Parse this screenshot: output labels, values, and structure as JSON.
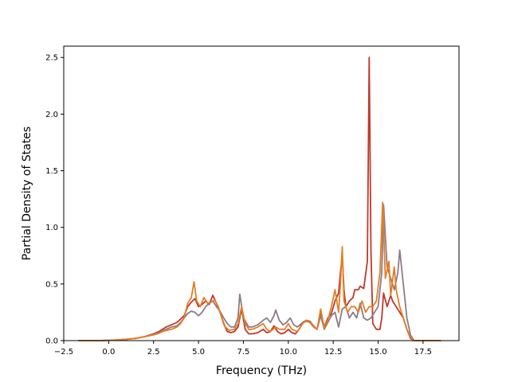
{
  "chart_data": {
    "type": "line",
    "title": "",
    "xlabel": "Frequency (THz)",
    "ylabel": "Partial Density of States",
    "xlim": [
      -2.5,
      19.5
    ],
    "ylim": [
      0,
      2.6
    ],
    "xticks": [
      -2.5,
      0.0,
      2.5,
      5.0,
      7.5,
      10.0,
      12.5,
      15.0,
      17.5
    ],
    "xtick_labels": [
      "−2.5",
      "0.0",
      "2.5",
      "5.0",
      "7.5",
      "10.0",
      "12.5",
      "15.0",
      "17.5"
    ],
    "yticks": [
      0.0,
      0.5,
      1.0,
      1.5,
      2.0,
      2.5
    ],
    "ytick_labels": [
      "0.0",
      "0.5",
      "1.0",
      "1.5",
      "2.0",
      "2.5"
    ],
    "grid": false,
    "legend": "none",
    "series": [
      {
        "color": "#c0392b",
        "points": [
          [
            -1.7,
            0
          ],
          [
            -0.5,
            0
          ],
          [
            0.0,
            0.003
          ],
          [
            0.5,
            0.006
          ],
          [
            1.0,
            0.012
          ],
          [
            1.5,
            0.02
          ],
          [
            2.0,
            0.035
          ],
          [
            2.5,
            0.06
          ],
          [
            2.8,
            0.08
          ],
          [
            3.0,
            0.1
          ],
          [
            3.2,
            0.12
          ],
          [
            3.5,
            0.14
          ],
          [
            3.8,
            0.16
          ],
          [
            4.0,
            0.19
          ],
          [
            4.2,
            0.22
          ],
          [
            4.4,
            0.3
          ],
          [
            4.6,
            0.34
          ],
          [
            4.8,
            0.37
          ],
          [
            5.0,
            0.3
          ],
          [
            5.2,
            0.32
          ],
          [
            5.4,
            0.35
          ],
          [
            5.6,
            0.32
          ],
          [
            5.8,
            0.4
          ],
          [
            6.0,
            0.33
          ],
          [
            6.2,
            0.25
          ],
          [
            6.4,
            0.15
          ],
          [
            6.6,
            0.08
          ],
          [
            6.8,
            0.07
          ],
          [
            7.0,
            0.08
          ],
          [
            7.2,
            0.12
          ],
          [
            7.4,
            0.28
          ],
          [
            7.6,
            0.1
          ],
          [
            7.8,
            0.06
          ],
          [
            8.0,
            0.06
          ],
          [
            8.3,
            0.07
          ],
          [
            8.6,
            0.1
          ],
          [
            8.8,
            0.07
          ],
          [
            9.0,
            0.08
          ],
          [
            9.2,
            0.13
          ],
          [
            9.4,
            0.08
          ],
          [
            9.6,
            0.06
          ],
          [
            9.8,
            0.07
          ],
          [
            10.0,
            0.1
          ],
          [
            10.2,
            0.07
          ],
          [
            10.4,
            0.06
          ],
          [
            10.6,
            0.1
          ],
          [
            10.8,
            0.16
          ],
          [
            11.0,
            0.18
          ],
          [
            11.2,
            0.17
          ],
          [
            11.4,
            0.13
          ],
          [
            11.6,
            0.1
          ],
          [
            11.8,
            0.24
          ],
          [
            12.0,
            0.12
          ],
          [
            12.2,
            0.2
          ],
          [
            12.4,
            0.24
          ],
          [
            12.6,
            0.35
          ],
          [
            12.8,
            0.42
          ],
          [
            12.9,
            0.6
          ],
          [
            13.0,
            0.75
          ],
          [
            13.1,
            0.45
          ],
          [
            13.2,
            0.3
          ],
          [
            13.4,
            0.35
          ],
          [
            13.6,
            0.38
          ],
          [
            13.7,
            0.45
          ],
          [
            13.9,
            0.45
          ],
          [
            14.0,
            0.48
          ],
          [
            14.2,
            0.46
          ],
          [
            14.4,
            0.7
          ],
          [
            14.5,
            2.5
          ],
          [
            14.6,
            0.8
          ],
          [
            14.7,
            0.15
          ],
          [
            14.9,
            0.1
          ],
          [
            15.1,
            0.1
          ],
          [
            15.2,
            0.2
          ],
          [
            15.3,
            0.42
          ],
          [
            15.5,
            0.3
          ],
          [
            15.7,
            0.4
          ],
          [
            15.8,
            0.35
          ],
          [
            16.0,
            0.3
          ],
          [
            16.2,
            0.25
          ],
          [
            16.4,
            0.2
          ],
          [
            16.6,
            0.1
          ],
          [
            16.8,
            0.02
          ],
          [
            17.0,
            0
          ],
          [
            18.5,
            0
          ]
        ]
      },
      {
        "color": "#8c7b8a",
        "points": [
          [
            -1.7,
            0
          ],
          [
            -0.5,
            0
          ],
          [
            0.0,
            0.003
          ],
          [
            0.5,
            0.006
          ],
          [
            1.0,
            0.012
          ],
          [
            1.5,
            0.02
          ],
          [
            2.0,
            0.035
          ],
          [
            2.5,
            0.055
          ],
          [
            2.8,
            0.07
          ],
          [
            3.0,
            0.085
          ],
          [
            3.2,
            0.1
          ],
          [
            3.5,
            0.12
          ],
          [
            3.8,
            0.13
          ],
          [
            4.0,
            0.16
          ],
          [
            4.2,
            0.2
          ],
          [
            4.4,
            0.24
          ],
          [
            4.6,
            0.26
          ],
          [
            4.8,
            0.25
          ],
          [
            5.0,
            0.22
          ],
          [
            5.2,
            0.25
          ],
          [
            5.4,
            0.3
          ],
          [
            5.6,
            0.33
          ],
          [
            5.8,
            0.35
          ],
          [
            6.0,
            0.3
          ],
          [
            6.2,
            0.26
          ],
          [
            6.4,
            0.2
          ],
          [
            6.6,
            0.15
          ],
          [
            6.8,
            0.12
          ],
          [
            7.0,
            0.12
          ],
          [
            7.2,
            0.2
          ],
          [
            7.3,
            0.41
          ],
          [
            7.5,
            0.2
          ],
          [
            7.8,
            0.12
          ],
          [
            8.0,
            0.12
          ],
          [
            8.3,
            0.14
          ],
          [
            8.6,
            0.18
          ],
          [
            8.8,
            0.2
          ],
          [
            9.0,
            0.16
          ],
          [
            9.2,
            0.22
          ],
          [
            9.3,
            0.27
          ],
          [
            9.5,
            0.18
          ],
          [
            9.7,
            0.14
          ],
          [
            9.9,
            0.16
          ],
          [
            10.1,
            0.2
          ],
          [
            10.3,
            0.14
          ],
          [
            10.5,
            0.12
          ],
          [
            10.8,
            0.16
          ],
          [
            11.0,
            0.17
          ],
          [
            11.2,
            0.16
          ],
          [
            11.4,
            0.13
          ],
          [
            11.6,
            0.1
          ],
          [
            11.8,
            0.22
          ],
          [
            12.0,
            0.1
          ],
          [
            12.2,
            0.16
          ],
          [
            12.4,
            0.22
          ],
          [
            12.6,
            0.25
          ],
          [
            12.8,
            0.12
          ],
          [
            13.0,
            0.28
          ],
          [
            13.2,
            0.3
          ],
          [
            13.4,
            0.2
          ],
          [
            13.6,
            0.25
          ],
          [
            13.8,
            0.2
          ],
          [
            14.0,
            0.33
          ],
          [
            14.2,
            0.2
          ],
          [
            14.4,
            0.18
          ],
          [
            14.6,
            0.2
          ],
          [
            14.8,
            0.25
          ],
          [
            15.0,
            0.3
          ],
          [
            15.2,
            0.6
          ],
          [
            15.3,
            1.2
          ],
          [
            15.5,
            0.65
          ],
          [
            15.7,
            0.55
          ],
          [
            15.9,
            0.45
          ],
          [
            16.1,
            0.6
          ],
          [
            16.2,
            0.8
          ],
          [
            16.4,
            0.5
          ],
          [
            16.6,
            0.2
          ],
          [
            16.8,
            0.05
          ],
          [
            17.0,
            0
          ],
          [
            18.5,
            0
          ]
        ]
      },
      {
        "color": "#e67e22",
        "points": [
          [
            -1.7,
            0
          ],
          [
            -0.5,
            0
          ],
          [
            0.0,
            0.003
          ],
          [
            0.5,
            0.006
          ],
          [
            1.0,
            0.012
          ],
          [
            1.5,
            0.02
          ],
          [
            2.0,
            0.035
          ],
          [
            2.5,
            0.05
          ],
          [
            2.8,
            0.065
          ],
          [
            3.0,
            0.08
          ],
          [
            3.2,
            0.09
          ],
          [
            3.5,
            0.1
          ],
          [
            3.8,
            0.12
          ],
          [
            4.0,
            0.15
          ],
          [
            4.2,
            0.2
          ],
          [
            4.4,
            0.33
          ],
          [
            4.6,
            0.38
          ],
          [
            4.75,
            0.52
          ],
          [
            4.9,
            0.35
          ],
          [
            5.1,
            0.3
          ],
          [
            5.3,
            0.38
          ],
          [
            5.5,
            0.33
          ],
          [
            5.7,
            0.34
          ],
          [
            5.9,
            0.36
          ],
          [
            6.1,
            0.3
          ],
          [
            6.3,
            0.2
          ],
          [
            6.5,
            0.12
          ],
          [
            6.7,
            0.09
          ],
          [
            7.0,
            0.1
          ],
          [
            7.2,
            0.15
          ],
          [
            7.4,
            0.3
          ],
          [
            7.6,
            0.15
          ],
          [
            7.8,
            0.1
          ],
          [
            8.0,
            0.1
          ],
          [
            8.3,
            0.12
          ],
          [
            8.6,
            0.15
          ],
          [
            8.8,
            0.1
          ],
          [
            9.0,
            0.08
          ],
          [
            9.3,
            0.12
          ],
          [
            9.5,
            0.1
          ],
          [
            9.8,
            0.1
          ],
          [
            10.0,
            0.15
          ],
          [
            10.2,
            0.1
          ],
          [
            10.5,
            0.08
          ],
          [
            10.8,
            0.15
          ],
          [
            11.0,
            0.18
          ],
          [
            11.2,
            0.16
          ],
          [
            11.4,
            0.12
          ],
          [
            11.6,
            0.1
          ],
          [
            11.8,
            0.28
          ],
          [
            12.0,
            0.11
          ],
          [
            12.2,
            0.18
          ],
          [
            12.4,
            0.3
          ],
          [
            12.6,
            0.45
          ],
          [
            12.8,
            0.25
          ],
          [
            12.9,
            0.5
          ],
          [
            13.0,
            0.83
          ],
          [
            13.1,
            0.35
          ],
          [
            13.3,
            0.25
          ],
          [
            13.5,
            0.3
          ],
          [
            13.7,
            0.3
          ],
          [
            13.9,
            0.25
          ],
          [
            14.1,
            0.35
          ],
          [
            14.3,
            0.25
          ],
          [
            14.5,
            0.3
          ],
          [
            14.7,
            0.3
          ],
          [
            14.9,
            0.35
          ],
          [
            15.1,
            0.6
          ],
          [
            15.25,
            1.22
          ],
          [
            15.4,
            0.55
          ],
          [
            15.6,
            0.7
          ],
          [
            15.7,
            0.4
          ],
          [
            15.9,
            0.65
          ],
          [
            16.0,
            0.45
          ],
          [
            16.2,
            0.3
          ],
          [
            16.4,
            0.2
          ],
          [
            16.6,
            0.1
          ],
          [
            16.8,
            0.03
          ],
          [
            17.0,
            0
          ],
          [
            18.5,
            0
          ]
        ]
      }
    ]
  }
}
